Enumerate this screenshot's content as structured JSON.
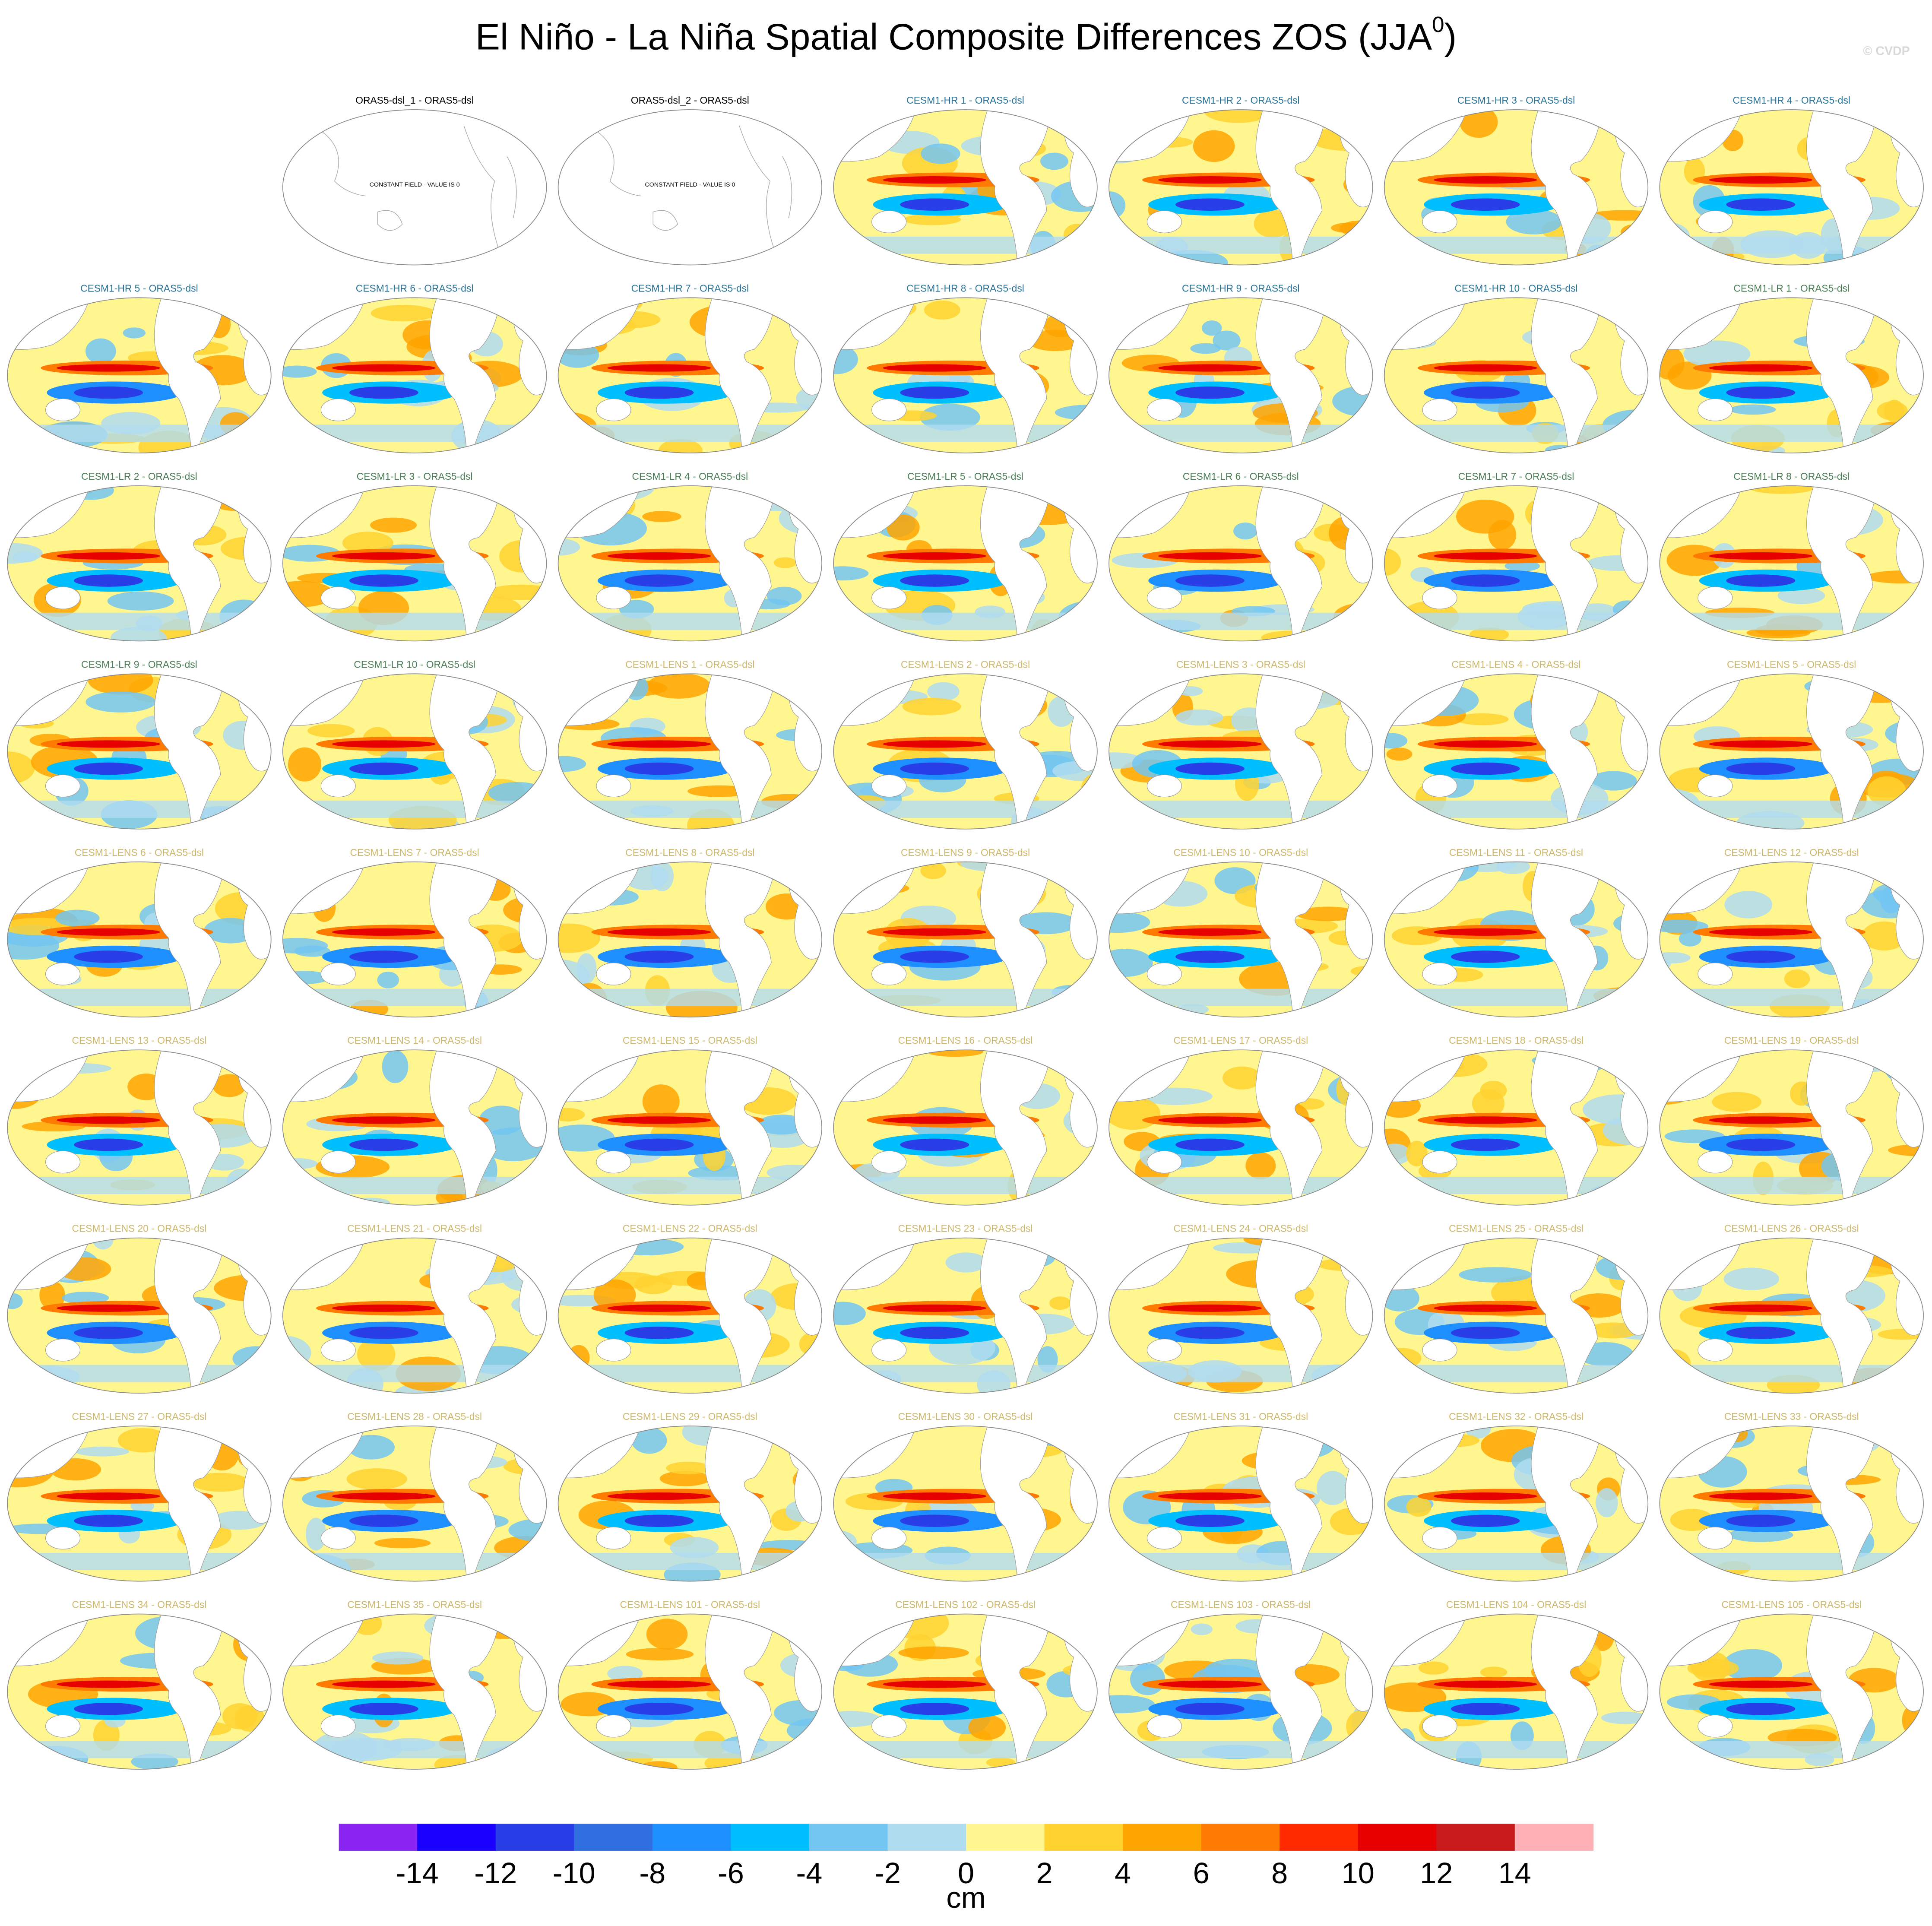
{
  "title": {
    "text": "El Niño - La Niña Spatial Composite Differences ZOS (JJA",
    "superscript": "0",
    "close": ")"
  },
  "watermark": "© CVDP",
  "panels": [
    {
      "title": "ORAS5-dsl_1 - ORAS5-dsl",
      "color": "#000000",
      "note": "CONSTANT FIELD - VALUE IS 0"
    },
    {
      "title": "ORAS5-dsl_2 - ORAS5-dsl",
      "color": "#000000",
      "note": "CONSTANT FIELD - VALUE IS 0"
    },
    {
      "title": "CESM1-HR 1 - ORAS5-dsl",
      "color": "#2a7398"
    },
    {
      "title": "CESM1-HR 2 - ORAS5-dsl",
      "color": "#2a7398"
    },
    {
      "title": "CESM1-HR 3 - ORAS5-dsl",
      "color": "#2a7398"
    },
    {
      "title": "CESM1-HR 4 - ORAS5-dsl",
      "color": "#2a7398"
    },
    {
      "title": "CESM1-HR 5 - ORAS5-dsl",
      "color": "#2a7398"
    },
    {
      "title": "CESM1-HR 6 - ORAS5-dsl",
      "color": "#2a7398"
    },
    {
      "title": "CESM1-HR 7 - ORAS5-dsl",
      "color": "#2a7398"
    },
    {
      "title": "CESM1-HR 8 - ORAS5-dsl",
      "color": "#2a7398"
    },
    {
      "title": "CESM1-HR 9 - ORAS5-dsl",
      "color": "#2a7398"
    },
    {
      "title": "CESM1-HR 10 - ORAS5-dsl",
      "color": "#2a7398"
    },
    {
      "title": "CESM1-LR 1 - ORAS5-dsl",
      "color": "#4a7e55"
    },
    {
      "title": "CESM1-LR 2 - ORAS5-dsl",
      "color": "#4a7e55"
    },
    {
      "title": "CESM1-LR 3 - ORAS5-dsl",
      "color": "#4a7e55"
    },
    {
      "title": "CESM1-LR 4 - ORAS5-dsl",
      "color": "#4a7e55"
    },
    {
      "title": "CESM1-LR 5 - ORAS5-dsl",
      "color": "#4a7e55"
    },
    {
      "title": "CESM1-LR 6 - ORAS5-dsl",
      "color": "#4a7e55"
    },
    {
      "title": "CESM1-LR 7 - ORAS5-dsl",
      "color": "#4a7e55"
    },
    {
      "title": "CESM1-LR 8 - ORAS5-dsl",
      "color": "#4a7e55"
    },
    {
      "title": "CESM1-LR 9 - ORAS5-dsl",
      "color": "#4a7e55"
    },
    {
      "title": "CESM1-LR 10 - ORAS5-dsl",
      "color": "#4a7e55"
    },
    {
      "title": "CESM1-LENS 1 - ORAS5-dsl",
      "color": "#cdb86a"
    },
    {
      "title": "CESM1-LENS 2 - ORAS5-dsl",
      "color": "#cdb86a"
    },
    {
      "title": "CESM1-LENS 3 - ORAS5-dsl",
      "color": "#cdb86a"
    },
    {
      "title": "CESM1-LENS 4 - ORAS5-dsl",
      "color": "#cdb86a"
    },
    {
      "title": "CESM1-LENS 5 - ORAS5-dsl",
      "color": "#cdb86a"
    },
    {
      "title": "CESM1-LENS 6 - ORAS5-dsl",
      "color": "#cdb86a"
    },
    {
      "title": "CESM1-LENS 7 - ORAS5-dsl",
      "color": "#cdb86a"
    },
    {
      "title": "CESM1-LENS 8 - ORAS5-dsl",
      "color": "#cdb86a"
    },
    {
      "title": "CESM1-LENS 9 - ORAS5-dsl",
      "color": "#cdb86a"
    },
    {
      "title": "CESM1-LENS 10 - ORAS5-dsl",
      "color": "#cdb86a"
    },
    {
      "title": "CESM1-LENS 11 - ORAS5-dsl",
      "color": "#cdb86a"
    },
    {
      "title": "CESM1-LENS 12 - ORAS5-dsl",
      "color": "#cdb86a"
    },
    {
      "title": "CESM1-LENS 13 - ORAS5-dsl",
      "color": "#cdb86a"
    },
    {
      "title": "CESM1-LENS 14 - ORAS5-dsl",
      "color": "#cdb86a"
    },
    {
      "title": "CESM1-LENS 15 - ORAS5-dsl",
      "color": "#cdb86a"
    },
    {
      "title": "CESM1-LENS 16 - ORAS5-dsl",
      "color": "#cdb86a"
    },
    {
      "title": "CESM1-LENS 17 - ORAS5-dsl",
      "color": "#cdb86a"
    },
    {
      "title": "CESM1-LENS 18 - ORAS5-dsl",
      "color": "#cdb86a"
    },
    {
      "title": "CESM1-LENS 19 - ORAS5-dsl",
      "color": "#cdb86a"
    },
    {
      "title": "CESM1-LENS 20 - ORAS5-dsl",
      "color": "#cdb86a"
    },
    {
      "title": "CESM1-LENS 21 - ORAS5-dsl",
      "color": "#cdb86a"
    },
    {
      "title": "CESM1-LENS 22 - ORAS5-dsl",
      "color": "#cdb86a"
    },
    {
      "title": "CESM1-LENS 23 - ORAS5-dsl",
      "color": "#cdb86a"
    },
    {
      "title": "CESM1-LENS 24 - ORAS5-dsl",
      "color": "#cdb86a"
    },
    {
      "title": "CESM1-LENS 25 - ORAS5-dsl",
      "color": "#cdb86a"
    },
    {
      "title": "CESM1-LENS 26 - ORAS5-dsl",
      "color": "#cdb86a"
    },
    {
      "title": "CESM1-LENS 27 - ORAS5-dsl",
      "color": "#cdb86a"
    },
    {
      "title": "CESM1-LENS 28 - ORAS5-dsl",
      "color": "#cdb86a"
    },
    {
      "title": "CESM1-LENS 29 - ORAS5-dsl",
      "color": "#cdb86a"
    },
    {
      "title": "CESM1-LENS 30 - ORAS5-dsl",
      "color": "#cdb86a"
    },
    {
      "title": "CESM1-LENS 31 - ORAS5-dsl",
      "color": "#cdb86a"
    },
    {
      "title": "CESM1-LENS 32 - ORAS5-dsl",
      "color": "#cdb86a"
    },
    {
      "title": "CESM1-LENS 33 - ORAS5-dsl",
      "color": "#cdb86a"
    },
    {
      "title": "CESM1-LENS 34 - ORAS5-dsl",
      "color": "#cdb86a"
    },
    {
      "title": "CESM1-LENS 35 - ORAS5-dsl",
      "color": "#cdb86a"
    },
    {
      "title": "CESM1-LENS 101 - ORAS5-dsl",
      "color": "#cdb86a"
    },
    {
      "title": "CESM1-LENS 102 - ORAS5-dsl",
      "color": "#cdb86a"
    },
    {
      "title": "CESM1-LENS 103 - ORAS5-dsl",
      "color": "#cdb86a"
    },
    {
      "title": "CESM1-LENS 104 - ORAS5-dsl",
      "color": "#cdb86a"
    },
    {
      "title": "CESM1-LENS 105 - ORAS5-dsl",
      "color": "#cdb86a"
    }
  ],
  "colorbar": {
    "levels": [
      -14,
      -12,
      -10,
      -8,
      -6,
      -4,
      -2,
      0,
      2,
      4,
      6,
      8,
      10,
      12,
      14
    ],
    "colors": [
      "#8a24f0",
      "#1a00ff",
      "#2a3ee8",
      "#2f6fe0",
      "#1e8fff",
      "#00bfff",
      "#73c6f2",
      "#b0dcf0",
      "#fff68f",
      "#ffd230",
      "#ffa500",
      "#ff7a00",
      "#ff2a00",
      "#e60000",
      "#c81a1a",
      "#ffb0b5"
    ],
    "label": "cm"
  }
}
